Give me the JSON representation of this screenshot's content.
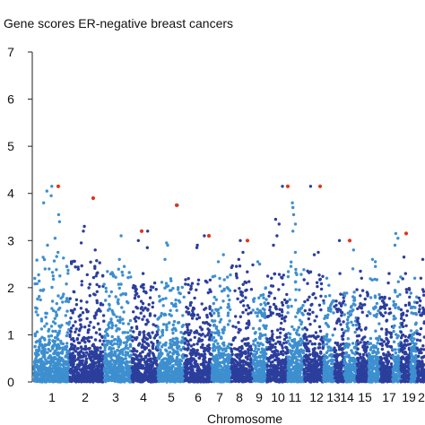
{
  "chart_data": {
    "type": "scatter",
    "title": "Gene scores ER-negative breast cancers",
    "xlabel": "Chromosome",
    "ylabel": "",
    "ylim": [
      0,
      7
    ],
    "yticks": [
      "0",
      "1",
      "2",
      "3",
      "4",
      "5",
      "6",
      "7"
    ],
    "xtick_labels": [
      "1",
      "2",
      "3",
      "4",
      "5",
      "6",
      "7",
      "8",
      "9",
      "10",
      "11",
      "12",
      "13",
      "14",
      "15",
      "17",
      "19",
      "2"
    ],
    "colors": {
      "light": "#3d8fcf",
      "dark": "#2c3e9c",
      "highlight": "#e0371c"
    },
    "chromosomes": [
      {
        "chr": "1",
        "typical_max": 2.7,
        "peaks": [
          4.15,
          4.05,
          3.95,
          3.8,
          3.55,
          3.4,
          3.05,
          2.9,
          2.75
        ]
      },
      {
        "chr": "2",
        "typical_max": 2.6,
        "peaks": [
          3.9,
          3.3,
          3.2,
          2.95,
          2.8
        ]
      },
      {
        "chr": "3",
        "typical_max": 2.4,
        "peaks": [
          3.1,
          2.6,
          2.45
        ]
      },
      {
        "chr": "4",
        "typical_max": 2.1,
        "peaks": [
          3.2,
          3.0,
          2.85,
          2.3
        ]
      },
      {
        "chr": "5",
        "typical_max": 2.2,
        "peaks": [
          3.75,
          2.95,
          2.9,
          2.6
        ]
      },
      {
        "chr": "6",
        "typical_max": 2.2,
        "peaks": [
          3.1,
          2.9,
          2.85
        ]
      },
      {
        "chr": "7",
        "typical_max": 2.3,
        "peaks": [
          2.7,
          2.55
        ]
      },
      {
        "chr": "8",
        "typical_max": 2.5,
        "peaks": [
          3.0,
          2.75,
          2.6
        ]
      },
      {
        "chr": "9",
        "typical_max": 2.0,
        "peaks": [
          2.55,
          2.5
        ]
      },
      {
        "chr": "10",
        "typical_max": 2.3,
        "peaks": [
          4.15,
          3.45,
          3.35,
          3.1,
          2.9
        ]
      },
      {
        "chr": "11",
        "typical_max": 2.6,
        "peaks": [
          3.8,
          3.7,
          3.55,
          3.35,
          3.2,
          2.75
        ]
      },
      {
        "chr": "12",
        "typical_max": 2.4,
        "peaks": [
          4.15,
          2.75,
          2.7
        ]
      },
      {
        "chr": "13",
        "typical_max": 1.9,
        "peaks": [
          2.2,
          2.05
        ]
      },
      {
        "chr": "14",
        "typical_max": 1.9,
        "peaks": [
          3.0,
          2.3
        ]
      },
      {
        "chr": "15",
        "typical_max": 2.0,
        "peaks": [
          2.8,
          2.4
        ]
      },
      {
        "chr": "16",
        "typical_max": 2.0,
        "peaks": [
          2.35,
          2.2
        ]
      },
      {
        "chr": "17",
        "typical_max": 2.2,
        "peaks": [
          2.6,
          2.55,
          2.45
        ]
      },
      {
        "chr": "18",
        "typical_max": 1.8,
        "peaks": [
          2.3,
          2.1
        ]
      },
      {
        "chr": "19",
        "typical_max": 2.3,
        "peaks": [
          3.15,
          3.05,
          2.9
        ]
      },
      {
        "chr": "20",
        "typical_max": 2.2,
        "peaks": [
          2.65,
          2.3
        ]
      },
      {
        "chr": "21",
        "typical_max": 1.9,
        "peaks": [
          2.2
        ]
      },
      {
        "chr": "22",
        "typical_max": 2.0,
        "peaks": [
          2.6,
          2.2
        ]
      }
    ],
    "highlighted_points": [
      {
        "chr": "1",
        "y": 4.15
      },
      {
        "chr": "2",
        "y": 3.9
      },
      {
        "chr": "4",
        "y": 3.2
      },
      {
        "chr": "5",
        "y": 3.75
      },
      {
        "chr": "6",
        "y": 3.1
      },
      {
        "chr": "8",
        "y": 3.0
      },
      {
        "chr": "10",
        "y": 4.15
      },
      {
        "chr": "12",
        "y": 4.15
      },
      {
        "chr": "14",
        "y": 3.0
      },
      {
        "chr": "19",
        "y": 3.15
      }
    ]
  }
}
